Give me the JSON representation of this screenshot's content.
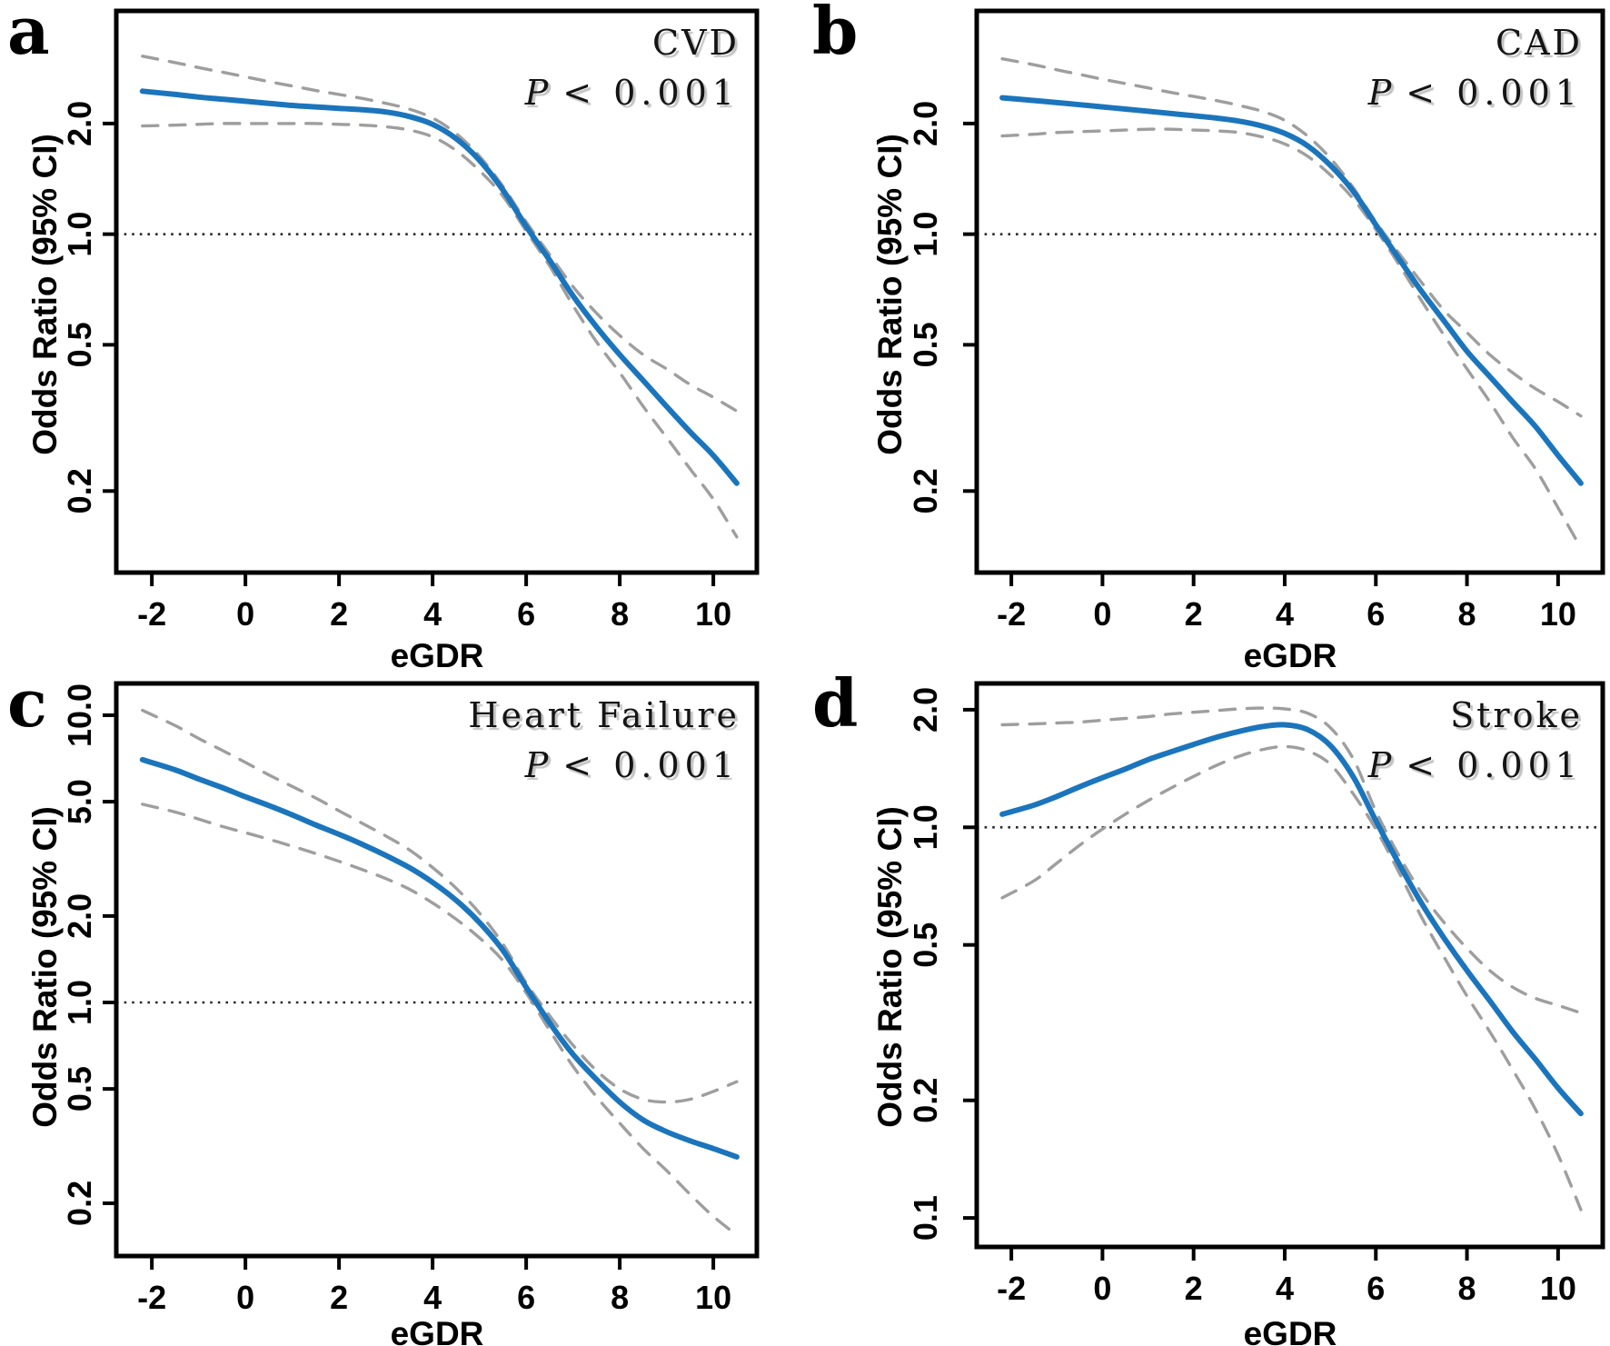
{
  "figure_title": "Restricted cubic spline odds ratio panels",
  "colors": {
    "odds_ratio_line": "#1b75bc",
    "confidence_interval_line": "#9e9e9e",
    "reference_line": "#2a2a2a",
    "axis": "#000000",
    "title_text": "#141414",
    "title_shadow": "#c3c3c3"
  },
  "chart_data": [
    {
      "type": "line",
      "panel_label": "a",
      "title": "CVD",
      "p_symbol": "P",
      "p_value_text": "< 0.001",
      "xlabel": "eGDR",
      "ylabel": "Odds Ratio (95% CI)",
      "y_scale": "log",
      "grid": false,
      "legend": "none",
      "reference_line_y": 1.0,
      "xlim": [
        -2.76,
        10.93
      ],
      "ylim": [
        0.12,
        4.05
      ],
      "x_ticks": [
        -2,
        0,
        2,
        4,
        6,
        8,
        10
      ],
      "x_tick_labels": [
        "-2",
        "0",
        "2",
        "4",
        "6",
        "8",
        "10"
      ],
      "y_ticks": [
        2.0,
        1.0,
        0.5,
        0.2
      ],
      "y_tick_labels": [
        "2.0",
        "1.0",
        "0.5",
        "0.2"
      ],
      "x": [
        -2.2,
        -1.5,
        -1,
        -0.5,
        0,
        0.5,
        1,
        1.5,
        2,
        2.5,
        3,
        3.5,
        4,
        4.5,
        5,
        5.5,
        6,
        6.5,
        7,
        7.5,
        8,
        8.5,
        9,
        9.5,
        10,
        10.5
      ],
      "series": [
        {
          "name": "odds-ratio",
          "style": "solid",
          "values": [
            2.45,
            2.4,
            2.36,
            2.33,
            2.3,
            2.27,
            2.24,
            2.22,
            2.2,
            2.18,
            2.15,
            2.09,
            1.99,
            1.82,
            1.59,
            1.32,
            1.05,
            0.85,
            0.68,
            0.56,
            0.47,
            0.4,
            0.34,
            0.29,
            0.25,
            0.21
          ]
        },
        {
          "name": "ci-upper",
          "style": "dashed",
          "values": [
            3.05,
            2.93,
            2.84,
            2.76,
            2.68,
            2.6,
            2.53,
            2.46,
            2.4,
            2.34,
            2.27,
            2.19,
            2.07,
            1.88,
            1.63,
            1.35,
            1.08,
            0.88,
            0.72,
            0.61,
            0.53,
            0.47,
            0.43,
            0.39,
            0.36,
            0.33
          ]
        },
        {
          "name": "ci-lower",
          "style": "dashed",
          "values": [
            1.97,
            1.98,
            1.99,
            2.0,
            2.0,
            2.0,
            2.0,
            2.0,
            1.99,
            1.98,
            1.96,
            1.92,
            1.84,
            1.69,
            1.49,
            1.27,
            1.02,
            0.82,
            0.64,
            0.51,
            0.42,
            0.34,
            0.28,
            0.23,
            0.19,
            0.15
          ]
        }
      ]
    },
    {
      "type": "line",
      "panel_label": "b",
      "title": "CAD",
      "p_symbol": "P",
      "p_value_text": "< 0.001",
      "xlabel": "eGDR",
      "ylabel": "Odds Ratio (95% CI)",
      "y_scale": "log",
      "grid": false,
      "legend": "none",
      "reference_line_y": 1.0,
      "xlim": [
        -2.76,
        10.98
      ],
      "ylim": [
        0.12,
        4.05
      ],
      "x_ticks": [
        -2,
        0,
        2,
        4,
        6,
        8,
        10
      ],
      "x_tick_labels": [
        "-2",
        "0",
        "2",
        "4",
        "6",
        "8",
        "10"
      ],
      "y_ticks": [
        2.0,
        1.0,
        0.5,
        0.2
      ],
      "y_tick_labels": [
        "2.0",
        "1.0",
        "0.5",
        "0.2"
      ],
      "x": [
        -2.2,
        -1.5,
        -1,
        -0.5,
        0,
        0.5,
        1,
        1.5,
        2,
        2.5,
        3,
        3.5,
        4,
        4.5,
        5,
        5.5,
        6,
        6.5,
        7,
        7.5,
        8,
        8.5,
        9,
        9.5,
        10,
        10.5
      ],
      "series": [
        {
          "name": "odds-ratio",
          "style": "solid",
          "values": [
            2.35,
            2.31,
            2.28,
            2.25,
            2.22,
            2.19,
            2.16,
            2.13,
            2.1,
            2.07,
            2.03,
            1.97,
            1.88,
            1.74,
            1.54,
            1.31,
            1.06,
            0.86,
            0.7,
            0.58,
            0.48,
            0.41,
            0.35,
            0.3,
            0.25,
            0.21
          ]
        },
        {
          "name": "ci-upper",
          "style": "dashed",
          "values": [
            3.0,
            2.89,
            2.8,
            2.72,
            2.64,
            2.57,
            2.5,
            2.43,
            2.37,
            2.31,
            2.24,
            2.16,
            2.04,
            1.85,
            1.61,
            1.34,
            1.08,
            0.89,
            0.74,
            0.62,
            0.54,
            0.47,
            0.42,
            0.38,
            0.35,
            0.32
          ]
        },
        {
          "name": "ci-lower",
          "style": "dashed",
          "values": [
            1.85,
            1.87,
            1.89,
            1.9,
            1.91,
            1.92,
            1.93,
            1.93,
            1.92,
            1.91,
            1.89,
            1.84,
            1.76,
            1.63,
            1.45,
            1.25,
            1.03,
            0.83,
            0.66,
            0.53,
            0.43,
            0.35,
            0.28,
            0.23,
            0.18,
            0.14
          ]
        }
      ]
    },
    {
      "type": "line",
      "panel_label": "c",
      "title": "Heart Failure",
      "p_symbol": "P",
      "p_value_text": "< 0.001",
      "xlabel": "eGDR",
      "ylabel": "Odds Ratio (95% CI)",
      "y_scale": "log",
      "grid": false,
      "legend": "none",
      "reference_line_y": 1.0,
      "xlim": [
        -2.76,
        10.93
      ],
      "ylim": [
        0.131,
        12.9
      ],
      "x_ticks": [
        -2,
        0,
        2,
        4,
        6,
        8,
        10
      ],
      "x_tick_labels": [
        "-2",
        "0",
        "2",
        "4",
        "6",
        "8",
        "10"
      ],
      "y_ticks": [
        10.0,
        5.0,
        2.0,
        1.0,
        0.5,
        0.2
      ],
      "y_tick_labels": [
        "10.0",
        "5.0",
        "2.0",
        "1.0",
        "0.5",
        "0.2"
      ],
      "x": [
        -2.2,
        -1.5,
        -1,
        -0.5,
        0,
        0.5,
        1,
        1.5,
        2,
        2.5,
        3,
        3.5,
        4,
        4.5,
        5,
        5.5,
        6,
        6.5,
        7,
        7.5,
        8,
        8.5,
        9,
        9.5,
        10,
        10.5
      ],
      "series": [
        {
          "name": "odds-ratio",
          "style": "solid",
          "values": [
            7.0,
            6.45,
            6.0,
            5.6,
            5.2,
            4.85,
            4.5,
            4.15,
            3.85,
            3.55,
            3.25,
            2.95,
            2.62,
            2.27,
            1.9,
            1.52,
            1.13,
            0.85,
            0.66,
            0.54,
            0.45,
            0.39,
            0.355,
            0.33,
            0.31,
            0.29
          ]
        },
        {
          "name": "ci-upper",
          "style": "dashed",
          "values": [
            10.4,
            9.2,
            8.3,
            7.55,
            6.85,
            6.2,
            5.65,
            5.15,
            4.65,
            4.2,
            3.8,
            3.4,
            2.95,
            2.5,
            2.05,
            1.6,
            1.17,
            0.9,
            0.71,
            0.58,
            0.5,
            0.46,
            0.45,
            0.46,
            0.49,
            0.53
          ]
        },
        {
          "name": "ci-lower",
          "style": "dashed",
          "values": [
            4.9,
            4.6,
            4.35,
            4.1,
            3.9,
            3.7,
            3.5,
            3.3,
            3.1,
            2.9,
            2.7,
            2.48,
            2.22,
            1.95,
            1.68,
            1.4,
            1.08,
            0.8,
            0.6,
            0.47,
            0.38,
            0.31,
            0.26,
            0.215,
            0.18,
            0.155
          ]
        }
      ]
    },
    {
      "type": "line",
      "panel_label": "d",
      "title": "Stroke",
      "p_symbol": "P",
      "p_value_text": "< 0.001",
      "xlabel": "eGDR",
      "ylabel": "Odds Ratio (95% CI)",
      "y_scale": "log",
      "grid": false,
      "legend": "none",
      "reference_line_y": 1.0,
      "xlim": [
        -2.76,
        10.98
      ],
      "ylim": [
        0.0843,
        2.335
      ],
      "x_ticks": [
        -2,
        0,
        2,
        4,
        6,
        8,
        10
      ],
      "x_tick_labels": [
        "-2",
        "0",
        "2",
        "4",
        "6",
        "8",
        "10"
      ],
      "y_ticks": [
        2.0,
        1.0,
        0.5,
        0.2,
        0.1
      ],
      "y_tick_labels": [
        "2.0",
        "1.0",
        "0.5",
        "0.2",
        "0.1"
      ],
      "x": [
        -2.2,
        -1.5,
        -1,
        -0.5,
        0,
        0.5,
        1,
        1.5,
        2,
        2.5,
        3,
        3.5,
        4,
        4.5,
        5,
        5.5,
        6,
        6.5,
        7,
        7.5,
        8,
        8.5,
        9,
        9.5,
        10,
        10.5
      ],
      "series": [
        {
          "name": "odds-ratio",
          "style": "solid",
          "values": [
            1.08,
            1.14,
            1.2,
            1.27,
            1.34,
            1.41,
            1.49,
            1.56,
            1.63,
            1.7,
            1.76,
            1.81,
            1.83,
            1.78,
            1.62,
            1.35,
            1.04,
            0.81,
            0.64,
            0.52,
            0.43,
            0.36,
            0.3,
            0.255,
            0.215,
            0.185
          ]
        },
        {
          "name": "ci-upper",
          "style": "dashed",
          "values": [
            1.83,
            1.84,
            1.85,
            1.86,
            1.88,
            1.9,
            1.92,
            1.95,
            1.97,
            1.99,
            2.01,
            2.02,
            2.01,
            1.96,
            1.8,
            1.5,
            1.1,
            0.85,
            0.68,
            0.57,
            0.49,
            0.43,
            0.39,
            0.365,
            0.35,
            0.335
          ]
        },
        {
          "name": "ci-lower",
          "style": "dashed",
          "values": [
            0.66,
            0.73,
            0.81,
            0.9,
            0.99,
            1.08,
            1.17,
            1.26,
            1.35,
            1.44,
            1.52,
            1.58,
            1.61,
            1.57,
            1.45,
            1.22,
            0.99,
            0.77,
            0.59,
            0.465,
            0.37,
            0.3,
            0.24,
            0.19,
            0.145,
            0.105
          ]
        }
      ]
    }
  ]
}
